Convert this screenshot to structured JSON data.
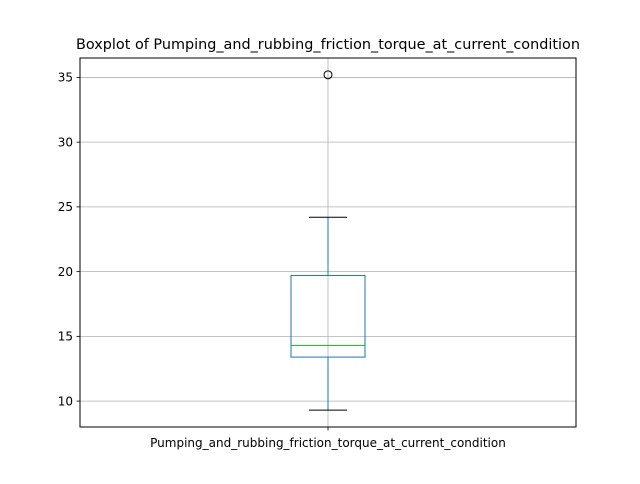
{
  "chart_data": {
    "type": "box",
    "title": "Boxplot of Pumping_and_rubbing_friction_torque_at_current_condition",
    "xlabel": "",
    "ylabel": "",
    "categories": [
      "Pumping_and_rubbing_friction_torque_at_current_condition"
    ],
    "boxes": [
      {
        "category": "Pumping_and_rubbing_friction_torque_at_current_condition",
        "whisker_low": 9.3,
        "q1": 13.4,
        "median": 14.3,
        "q3": 19.7,
        "whisker_high": 24.2,
        "outliers": [
          35.2
        ]
      }
    ],
    "ylim": [
      8.0,
      36.5
    ],
    "yticks": [
      10,
      15,
      20,
      25,
      30,
      35
    ],
    "grid": true,
    "colors": {
      "box": "#1f77b4",
      "median": "#2ca02c",
      "whisker": "#1f77b4",
      "cap": "#000000",
      "flier": "#000000",
      "grid": "#b0b0b0",
      "axes": "#000000"
    }
  }
}
